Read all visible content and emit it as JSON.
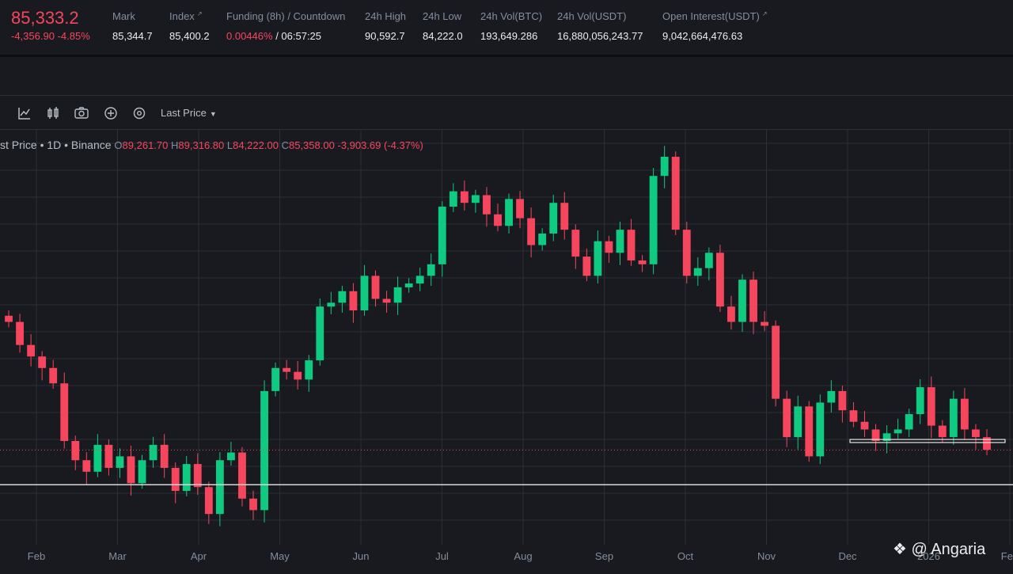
{
  "ticker": {
    "last_price": "85,333.2",
    "change_abs": "-4,356.90",
    "change_pct": "-4.85%"
  },
  "stats": {
    "mark_label": "Mark",
    "mark_value": "85,344.7",
    "index_label": "Index",
    "index_value": "85,400.2",
    "funding_label": "Funding (8h) / Countdown",
    "funding_rate": "0.00446%",
    "funding_countdown": "/ 06:57:25",
    "high_label": "24h High",
    "high_value": "90,592.7",
    "low_label": "24h Low",
    "low_value": "84,222.0",
    "volbtc_label": "24h Vol(BTC)",
    "volbtc_value": "193,649.286",
    "volusdt_label": "24h Vol(USDT)",
    "volusdt_value": "16,880,056,243.77",
    "oi_label": "Open Interest(USDT)",
    "oi_value": "9,042,664,476.63"
  },
  "toolbar": {
    "icons": [
      "indicator-icon",
      "candle-type-icon",
      "camera-icon",
      "plus-circle-icon",
      "settings-icon"
    ],
    "price_type": "Last Price"
  },
  "legend": {
    "title": "st Price • 1D • Binance",
    "o_key": "O",
    "o": "89,261.70",
    "h_key": "H",
    "h": "89,316.80",
    "l_key": "L",
    "l": "84,222.00",
    "c_key": "C",
    "c": "85,358.00",
    "change": "-3,903.69 (-4.37%)"
  },
  "chart_data": {
    "type": "candlestick",
    "interval": "1D",
    "x_ticks": [
      "Feb",
      "Mar",
      "Apr",
      "May",
      "Jun",
      "Jul",
      "Aug",
      "Sep",
      "Oct",
      "Nov",
      "Dec",
      "2026",
      "Feb"
    ],
    "ylim": [
      73000,
      127000
    ],
    "grid": true,
    "current_price": 85333.2,
    "closes": [
      102000,
      99000,
      97500,
      96000,
      94000,
      86500,
      84000,
      82500,
      86000,
      83000,
      84500,
      81000,
      84000,
      86000,
      83000,
      80000,
      83500,
      80500,
      77000,
      84000,
      85000,
      79000,
      77500,
      93000,
      96000,
      95500,
      94500,
      97000,
      104000,
      104500,
      106000,
      103500,
      108000,
      105000,
      104500,
      106500,
      107000,
      108000,
      109500,
      117000,
      119000,
      117500,
      118500,
      116000,
      114500,
      118000,
      115500,
      112000,
      113500,
      117500,
      114000,
      110500,
      108000,
      112500,
      111000,
      114000,
      110000,
      109500,
      121000,
      123500,
      114000,
      108000,
      109000,
      111000,
      104000,
      102000,
      107500,
      102000,
      101500,
      92000,
      87000,
      91000,
      84500,
      91500,
      93000,
      90500,
      89000,
      88000,
      86500,
      87500,
      88000,
      90000,
      93500,
      88500,
      87000,
      92000,
      88000,
      87000,
      85358
    ],
    "horizontal_lines": [
      {
        "name": "support-line",
        "price": 80800
      },
      {
        "name": "range-box-top",
        "price": 86700
      },
      {
        "name": "range-box-bottom",
        "price": 86300
      }
    ]
  },
  "colors": {
    "background": "#181a20",
    "up": "#0ecb81",
    "down": "#f6465d",
    "grid": "#2b2f36",
    "text_muted": "#848e9c"
  },
  "watermark": {
    "text": "@ Angaria"
  }
}
